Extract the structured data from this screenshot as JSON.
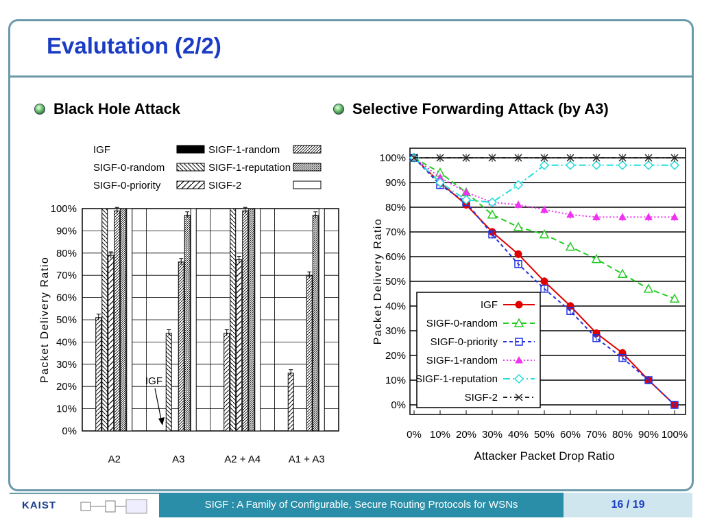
{
  "slide": {
    "title": "Evalutation (2/2)",
    "left_heading": "Black Hole Attack",
    "right_heading": "Selective Forwarding Attack (by A3)",
    "footer_logo": "KAIST",
    "footer_text": "SIGF : A Family of Configurable, Secure Routing Protocols for WSNs",
    "page": "16 / 19"
  },
  "chart_data": [
    {
      "type": "bar",
      "title": "",
      "xlabel": "",
      "ylabel": "Packet Delivery Ratio",
      "ylim": [
        0,
        100
      ],
      "yticks": [
        "0%",
        "10%",
        "20%",
        "30%",
        "40%",
        "50%",
        "60%",
        "70%",
        "80%",
        "90%",
        "100%"
      ],
      "categories": [
        "A2",
        "A3",
        "A2 + A4",
        "A1 + A3"
      ],
      "legend_placement": "top",
      "annotation": "IGF",
      "series": [
        {
          "name": "IGF",
          "values": [
            51,
            0,
            44,
            26
          ],
          "pattern": "hatch-left"
        },
        {
          "name": "SIGF-0-random",
          "values": [
            100,
            44,
            100,
            0
          ],
          "pattern": "backslash"
        },
        {
          "name": "SIGF-0-priority",
          "values": [
            79,
            0,
            77,
            0
          ],
          "pattern": "slash-wide"
        },
        {
          "name": "SIGF-1-random",
          "values": [
            99,
            76,
            99,
            70
          ],
          "pattern": "slash"
        },
        {
          "name": "SIGF-1-reputation",
          "values": [
            100,
            97,
            100,
            97
          ],
          "pattern": "dense"
        },
        {
          "name": "SIGF-2",
          "values": [
            100,
            100,
            100,
            100
          ],
          "pattern": "blank"
        }
      ],
      "legend": [
        {
          "name": "IGF",
          "pattern": "solid-black"
        },
        {
          "name": "SIGF-1-random",
          "pattern": "slash"
        },
        {
          "name": "SIGF-0-random",
          "pattern": "backslash"
        },
        {
          "name": "SIGF-1-reputation",
          "pattern": "dense"
        },
        {
          "name": "SIGF-0-priority",
          "pattern": "slash-wide"
        },
        {
          "name": "SIGF-2",
          "pattern": "blank"
        }
      ],
      "grid": true
    },
    {
      "type": "line",
      "title": "",
      "xlabel": "Attacker Packet Drop Ratio",
      "ylabel": "Packet Delivery Ratio",
      "xlim": [
        0,
        100
      ],
      "ylim": [
        0,
        100
      ],
      "x": [
        0,
        10,
        20,
        30,
        40,
        50,
        60,
        70,
        80,
        90,
        100
      ],
      "xticks": [
        "0%",
        "10%",
        "20%",
        "30%",
        "40%",
        "50%",
        "60%",
        "70%",
        "80%",
        "90%",
        "100%"
      ],
      "yticks": [
        "0%",
        "10%",
        "20%",
        "30%",
        "40%",
        "50%",
        "60%",
        "70%",
        "80%",
        "90%",
        "100%"
      ],
      "grid": true,
      "legend_placement": "bottom-left",
      "series": [
        {
          "name": "IGF",
          "values": [
            100,
            90,
            81,
            70,
            61,
            50,
            40,
            29,
            21,
            10,
            0
          ],
          "color": "#e00000",
          "dash": "",
          "marker": "circle"
        },
        {
          "name": "SIGF-0-random",
          "values": [
            100,
            94,
            86,
            77,
            72,
            69,
            64,
            59,
            53,
            47,
            43
          ],
          "color": "#22cc22",
          "dash": "8,5",
          "marker": "triangle"
        },
        {
          "name": "SIGF-0-priority",
          "values": [
            100,
            89,
            82,
            69,
            57,
            47,
            38,
            27,
            19,
            10,
            0
          ],
          "color": "#2233dd",
          "dash": "5,4",
          "marker": "square"
        },
        {
          "name": "SIGF-1-random",
          "values": [
            100,
            92,
            86,
            82,
            81,
            79,
            77,
            76,
            76,
            76,
            76
          ],
          "color": "#ee33ee",
          "dash": "2,3",
          "marker": "triangle-filled"
        },
        {
          "name": "SIGF-1-reputation",
          "values": [
            100,
            90,
            83,
            82,
            89,
            97,
            97,
            97,
            97,
            97,
            97
          ],
          "color": "#22dddd",
          "dash": "10,4,2,4",
          "marker": "diamond"
        },
        {
          "name": "SIGF-2",
          "values": [
            100,
            100,
            100,
            100,
            100,
            100,
            100,
            100,
            100,
            100,
            100
          ],
          "color": "#222222",
          "dash": "6,4,2,4",
          "marker": "x"
        }
      ]
    }
  ]
}
